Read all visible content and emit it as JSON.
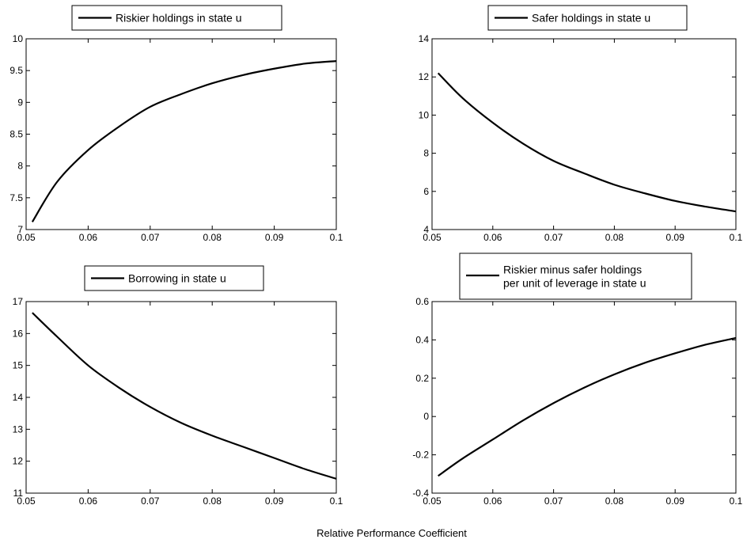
{
  "figure": {
    "xlabel": "Relative Performance Coefficient"
  },
  "chart_data": [
    {
      "type": "line",
      "legend": [
        "Riskier holdings in state u"
      ],
      "series": [
        {
          "name": "Riskier holdings in state u",
          "x": [
            0.051,
            0.055,
            0.06,
            0.065,
            0.07,
            0.075,
            0.08,
            0.085,
            0.09,
            0.095,
            0.1
          ],
          "y": [
            7.12,
            7.75,
            8.25,
            8.62,
            8.93,
            9.13,
            9.3,
            9.43,
            9.53,
            9.61,
            9.65
          ]
        }
      ],
      "xlim": [
        0.05,
        0.1
      ],
      "ylim": [
        7,
        10
      ],
      "xticks": [
        "0.05",
        "0.06",
        "0.07",
        "0.08",
        "0.09",
        "0.1"
      ],
      "yticks": [
        "7",
        "7.5",
        "8",
        "8.5",
        "9",
        "9.5",
        "10"
      ],
      "legend_position": "top-center",
      "grid": false
    },
    {
      "type": "line",
      "legend": [
        "Safer holdings in state u"
      ],
      "series": [
        {
          "name": "Safer holdings in state u",
          "x": [
            0.051,
            0.055,
            0.06,
            0.065,
            0.07,
            0.075,
            0.08,
            0.085,
            0.09,
            0.095,
            0.1
          ],
          "y": [
            12.2,
            10.9,
            9.6,
            8.5,
            7.6,
            6.95,
            6.35,
            5.9,
            5.5,
            5.2,
            4.95
          ]
        }
      ],
      "xlim": [
        0.05,
        0.1
      ],
      "ylim": [
        4,
        14
      ],
      "xticks": [
        "0.05",
        "0.06",
        "0.07",
        "0.08",
        "0.09",
        "0.1"
      ],
      "yticks": [
        "4",
        "6",
        "8",
        "10",
        "12",
        "14"
      ],
      "legend_position": "top-center",
      "grid": false
    },
    {
      "type": "line",
      "legend": [
        "Borrowing in state u"
      ],
      "series": [
        {
          "name": "Borrowing in state u",
          "x": [
            0.051,
            0.055,
            0.06,
            0.065,
            0.07,
            0.075,
            0.08,
            0.085,
            0.09,
            0.095,
            0.1
          ],
          "y": [
            16.65,
            15.9,
            15.0,
            14.3,
            13.7,
            13.2,
            12.8,
            12.45,
            12.1,
            11.75,
            11.45
          ]
        }
      ],
      "xlim": [
        0.05,
        0.1
      ],
      "ylim": [
        11,
        17
      ],
      "xticks": [
        "0.05",
        "0.06",
        "0.07",
        "0.08",
        "0.09",
        "0.1"
      ],
      "yticks": [
        "11",
        "12",
        "13",
        "14",
        "15",
        "16",
        "17"
      ],
      "legend_position": "top-center",
      "grid": false
    },
    {
      "type": "line",
      "legend": [
        "Riskier minus safer holdings",
        "per unit of leverage in state u"
      ],
      "series": [
        {
          "name": "Riskier minus safer holdings per unit of leverage in state u",
          "x": [
            0.051,
            0.055,
            0.06,
            0.065,
            0.07,
            0.075,
            0.08,
            0.085,
            0.09,
            0.095,
            0.1
          ],
          "y": [
            -0.31,
            -0.22,
            -0.12,
            -0.02,
            0.07,
            0.15,
            0.22,
            0.28,
            0.33,
            0.375,
            0.41
          ]
        }
      ],
      "xlim": [
        0.05,
        0.1
      ],
      "ylim": [
        -0.4,
        0.6
      ],
      "xticks": [
        "0.05",
        "0.06",
        "0.07",
        "0.08",
        "0.09",
        "0.1"
      ],
      "yticks": [
        "-0.4",
        "-0.2",
        "0",
        "0.2",
        "0.4",
        "0.6"
      ],
      "legend_position": "top-center",
      "grid": false
    }
  ]
}
